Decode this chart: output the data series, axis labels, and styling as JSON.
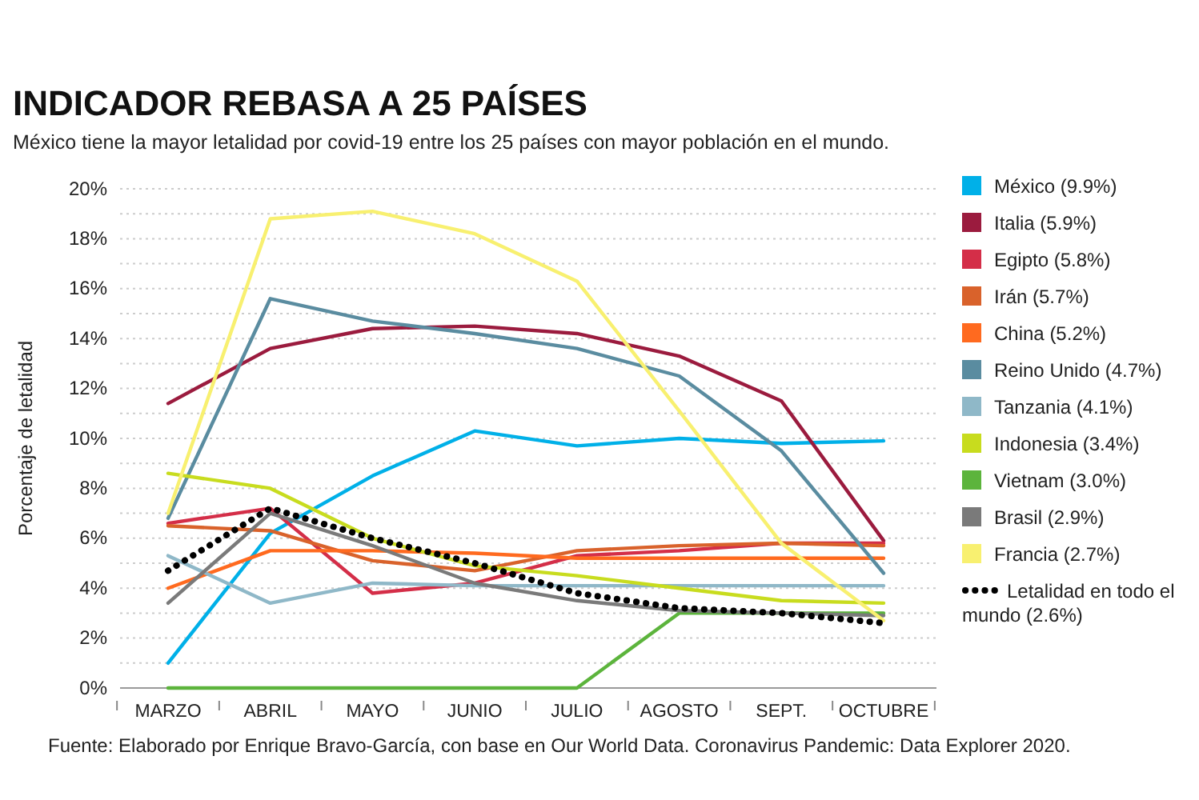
{
  "chart_data": {
    "type": "line",
    "title": "INDICADOR REBASA A 25 PAÍSES",
    "subtitle": "México tiene la mayor letalidad por covid-19 entre los 25 países con mayor población en el mundo.",
    "ylabel": "Porcentaje de letalidad",
    "annotations": [
      "Fuente: Elaborado por Enrique Bravo-García, con base en Our World Data. Coronavirus Pandemic: Data Explorer 2020."
    ],
    "categories": [
      "MARZO",
      "ABRIL",
      "MAYO",
      "JUNIO",
      "JULIO",
      "AGOSTO",
      "SEPT.",
      "OCTUBRE"
    ],
    "ylim": [
      0,
      20
    ],
    "yticks": [
      {
        "value": 0,
        "label": "0%"
      },
      {
        "value": 1,
        "label": null
      },
      {
        "value": 2,
        "label": "2%"
      },
      {
        "value": 3,
        "label": null
      },
      {
        "value": 4,
        "label": "4%"
      },
      {
        "value": 5,
        "label": null
      },
      {
        "value": 6,
        "label": "6%"
      },
      {
        "value": 7,
        "label": null
      },
      {
        "value": 8,
        "label": "8%"
      },
      {
        "value": 9,
        "label": null
      },
      {
        "value": 10,
        "label": "10%"
      },
      {
        "value": 11,
        "label": null
      },
      {
        "value": 12,
        "label": "12%"
      },
      {
        "value": 13,
        "label": null
      },
      {
        "value": 14,
        "label": "14%"
      },
      {
        "value": 15,
        "label": null
      },
      {
        "value": 16,
        "label": "16%"
      },
      {
        "value": 17,
        "label": null
      },
      {
        "value": 18,
        "label": "18%"
      },
      {
        "value": 19,
        "label": null
      },
      {
        "value": 20,
        "label": "20%"
      }
    ],
    "grid": "y",
    "legend": "right",
    "marker": "none",
    "line_style": "solid",
    "series": [
      {
        "name": "México (9.9%)",
        "color": "#00b0e8",
        "values": [
          1.0,
          6.2,
          8.5,
          10.3,
          9.7,
          10.0,
          9.8,
          9.9
        ]
      },
      {
        "name": "Italia (5.9%)",
        "color": "#9b1b3e",
        "values": [
          11.4,
          13.6,
          14.4,
          14.5,
          14.2,
          13.3,
          11.5,
          5.9
        ]
      },
      {
        "name": "Egipto (5.8%)",
        "color": "#d42e48",
        "values": [
          6.6,
          7.2,
          3.8,
          4.2,
          5.3,
          5.5,
          5.8,
          5.8
        ]
      },
      {
        "name": "Irán (5.7%)",
        "color": "#d9622b",
        "values": [
          6.5,
          6.3,
          5.1,
          4.7,
          5.5,
          5.7,
          5.8,
          5.7
        ]
      },
      {
        "name": "China (5.2%)",
        "color": "#ff6a1f",
        "values": [
          4.0,
          5.5,
          5.5,
          5.4,
          5.2,
          5.2,
          5.2,
          5.2
        ]
      },
      {
        "name": "Reino Unido (4.7%)",
        "color": "#5a8ca0",
        "values": [
          6.8,
          15.6,
          14.7,
          14.2,
          13.6,
          12.5,
          9.5,
          4.6
        ]
      },
      {
        "name": "Tanzania (4.1%)",
        "color": "#8fb8c8",
        "values": [
          5.3,
          3.4,
          4.2,
          4.1,
          4.1,
          4.1,
          4.1,
          4.1
        ]
      },
      {
        "name": "Indonesia (3.4%)",
        "color": "#c8dc1e",
        "values": [
          8.6,
          8.0,
          6.0,
          4.9,
          4.5,
          4.0,
          3.5,
          3.4
        ]
      },
      {
        "name": "Vietnam (3.0%)",
        "color": "#5cb43c",
        "values": [
          0,
          0,
          0,
          0,
          0,
          3.0,
          3.0,
          3.0
        ]
      },
      {
        "name": "Brasil (2.9%)",
        "color": "#7a7a7a",
        "values": [
          3.4,
          7.0,
          5.7,
          4.2,
          3.5,
          3.1,
          3.0,
          2.9
        ]
      },
      {
        "name": "Francia (2.7%)",
        "color": "#f8f070",
        "values": [
          7.0,
          18.8,
          19.1,
          18.2,
          16.3,
          11.1,
          5.8,
          2.7
        ]
      },
      {
        "name": "Letalidad en todo el mundo (2.6%)",
        "color": "#000000",
        "line_style": "dotted",
        "values": [
          4.7,
          7.2,
          6.0,
          5.0,
          3.8,
          3.2,
          3.0,
          2.6
        ]
      }
    ]
  }
}
